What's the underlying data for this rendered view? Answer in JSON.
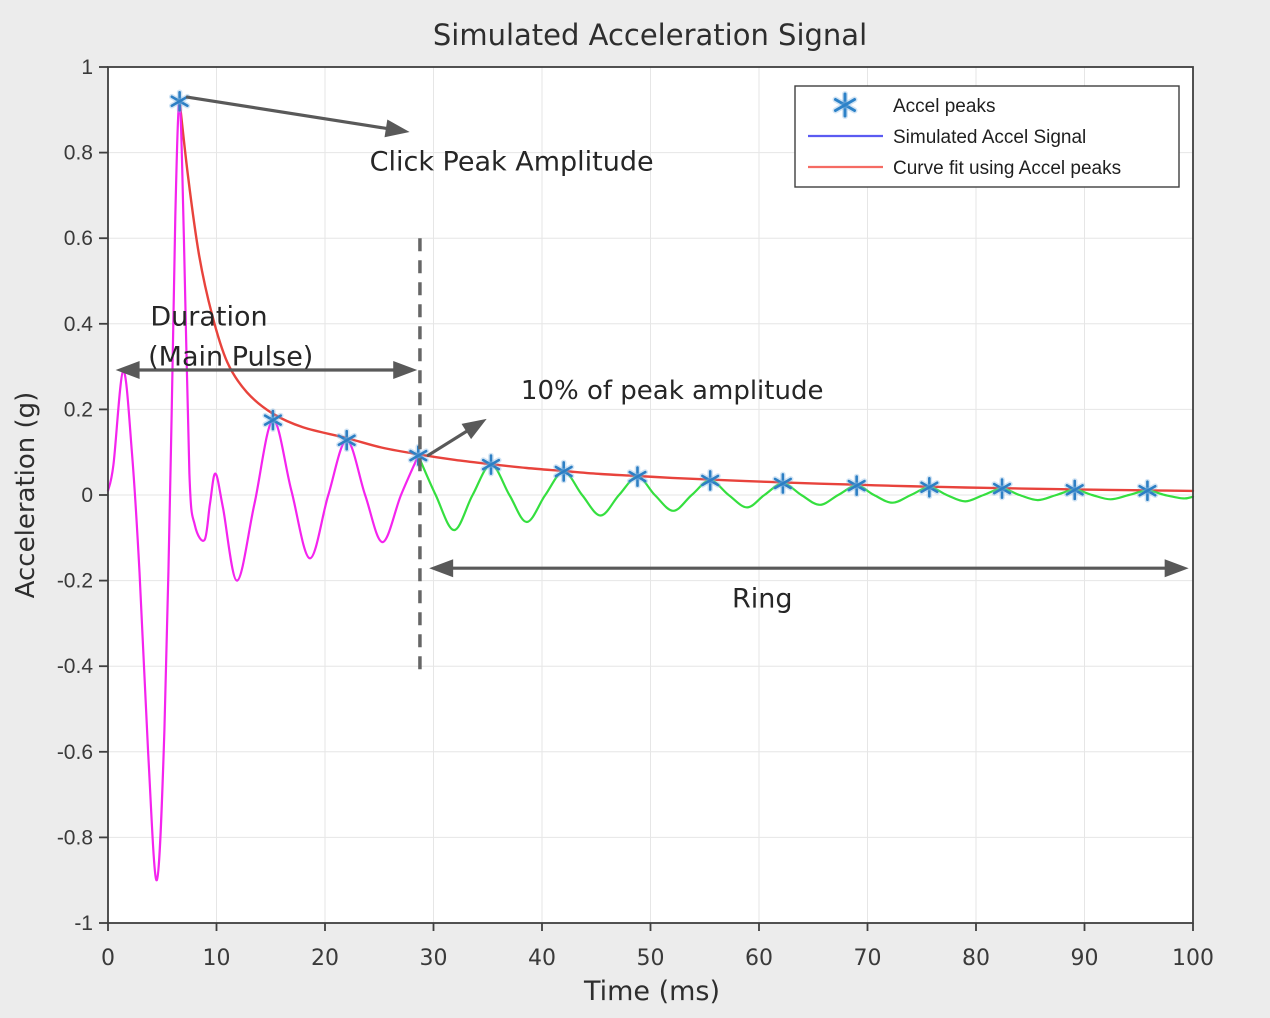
{
  "window": {
    "background": "#ececec",
    "plot_background": "#ffffff"
  },
  "chart_data": {
    "type": "line",
    "title": "Simulated Acceleration Signal",
    "xlabel": "Time (ms)",
    "ylabel": "Acceleration (g)",
    "xlim": [
      0,
      100
    ],
    "ylim": [
      -1,
      1
    ],
    "xticks": [
      0,
      10,
      20,
      30,
      40,
      50,
      60,
      70,
      80,
      90,
      100
    ],
    "yticks": [
      -1,
      -0.8,
      -0.6,
      -0.4,
      -0.2,
      0,
      0.2,
      0.4,
      0.6,
      0.8,
      1
    ],
    "grid": true,
    "grid_color": "#e6e6e6",
    "axis_color": "#3f3f3f",
    "tick_label_color": "#3a3a3a",
    "legend": {
      "position": "top-right",
      "entries": [
        {
          "label": "Accel peaks",
          "swatch": "asterisk-marker",
          "color": "#2d82c8"
        },
        {
          "label": "Simulated Accel Signal",
          "swatch": "line",
          "color": "#5b5bf2"
        },
        {
          "label": "Curve fit using Accel peaks",
          "swatch": "line",
          "color": "#f56b63"
        }
      ]
    },
    "series": [
      {
        "name": "main-pulse-segment",
        "legend_label": "Simulated Accel Signal",
        "color": "#f424ee",
        "points": [
          [
            0,
            0.01
          ],
          [
            0.5,
            0.07
          ],
          [
            1.4,
            0.29
          ],
          [
            2.2,
            0.1
          ],
          [
            2.9,
            -0.18
          ],
          [
            3.7,
            -0.6
          ],
          [
            4.5,
            -0.9
          ],
          [
            5.2,
            -0.55
          ],
          [
            5.8,
            0.1
          ],
          [
            6.2,
            0.65
          ],
          [
            6.6,
            0.92
          ],
          [
            7.0,
            0.6
          ],
          [
            7.5,
            0.05
          ],
          [
            8.0,
            -0.07
          ],
          [
            8.9,
            -0.105
          ],
          [
            9.4,
            -0.02
          ],
          [
            9.9,
            0.05
          ],
          [
            10.6,
            -0.03
          ],
          [
            11.9,
            -0.2
          ],
          [
            13.5,
            -0.02
          ],
          [
            15.2,
            0.175
          ],
          [
            16.9,
            0.01
          ],
          [
            18.6,
            -0.148
          ],
          [
            20.3,
            0
          ],
          [
            22.0,
            0.128
          ],
          [
            23.7,
            0
          ],
          [
            25.3,
            -0.11
          ],
          [
            27.0,
            0
          ],
          [
            28.6,
            0.092
          ]
        ]
      },
      {
        "name": "ring-segment",
        "legend_label": "Simulated Accel Signal",
        "color": "#35df3f",
        "points": [
          [
            28.6,
            0.092
          ],
          [
            30.2,
            0
          ],
          [
            31.9,
            -0.082
          ],
          [
            33.6,
            0
          ],
          [
            35.3,
            0.071
          ],
          [
            37.0,
            0
          ],
          [
            38.6,
            -0.063
          ],
          [
            40.3,
            0
          ],
          [
            42.0,
            0.055
          ],
          [
            43.7,
            0
          ],
          [
            45.4,
            -0.048
          ],
          [
            47.1,
            0
          ],
          [
            48.8,
            0.043
          ],
          [
            50.4,
            0
          ],
          [
            52.1,
            -0.037
          ],
          [
            53.8,
            0
          ],
          [
            55.5,
            0.034
          ],
          [
            57.2,
            0
          ],
          [
            58.9,
            -0.029
          ],
          [
            60.5,
            0
          ],
          [
            62.2,
            0.027
          ],
          [
            63.9,
            0
          ],
          [
            65.6,
            -0.023
          ],
          [
            67.3,
            0
          ],
          [
            69.0,
            0.022
          ],
          [
            70.6,
            0
          ],
          [
            72.3,
            -0.018
          ],
          [
            74.0,
            0
          ],
          [
            75.7,
            0.018
          ],
          [
            77.3,
            0
          ],
          [
            79.0,
            -0.015
          ],
          [
            80.7,
            0
          ],
          [
            82.4,
            0.015
          ],
          [
            84.0,
            0
          ],
          [
            85.7,
            -0.012
          ],
          [
            87.4,
            0
          ],
          [
            89.1,
            0.012
          ],
          [
            90.7,
            0
          ],
          [
            92.4,
            -0.01
          ],
          [
            94.1,
            0
          ],
          [
            95.8,
            0.01
          ],
          [
            97.4,
            0
          ],
          [
            99.1,
            -0.008
          ],
          [
            100,
            -0.004
          ]
        ]
      },
      {
        "name": "curve-fit",
        "legend_label": "Curve fit using Accel peaks",
        "color": "#e8433c",
        "points": [
          [
            6.6,
            0.92
          ],
          [
            7.4,
            0.74
          ],
          [
            8.4,
            0.56
          ],
          [
            9.6,
            0.42
          ],
          [
            11,
            0.31
          ],
          [
            12.8,
            0.24
          ],
          [
            15.2,
            0.19
          ],
          [
            18,
            0.158
          ],
          [
            22,
            0.133
          ],
          [
            25.2,
            0.111
          ],
          [
            28.6,
            0.095
          ],
          [
            32,
            0.082
          ],
          [
            35.3,
            0.072
          ],
          [
            38.6,
            0.063
          ],
          [
            42,
            0.056
          ],
          [
            45.4,
            0.049
          ],
          [
            48.8,
            0.0445
          ],
          [
            52,
            0.04
          ],
          [
            55.5,
            0.036
          ],
          [
            58.8,
            0.0325
          ],
          [
            62.2,
            0.0295
          ],
          [
            65.6,
            0.0265
          ],
          [
            69,
            0.024
          ],
          [
            72.3,
            0.0215
          ],
          [
            75.7,
            0.0195
          ],
          [
            79,
            0.0175
          ],
          [
            82.4,
            0.016
          ],
          [
            85.7,
            0.0145
          ],
          [
            89.1,
            0.013
          ],
          [
            92.4,
            0.0118
          ],
          [
            95.8,
            0.0108
          ],
          [
            100,
            0.0095
          ]
        ]
      },
      {
        "name": "accel-peaks",
        "legend_label": "Accel peaks",
        "marker": "asterisk",
        "color": "#2d7fc4",
        "points": [
          [
            6.6,
            0.92
          ],
          [
            15.2,
            0.175
          ],
          [
            22.0,
            0.128
          ],
          [
            28.6,
            0.092
          ],
          [
            35.3,
            0.071
          ],
          [
            42.0,
            0.055
          ],
          [
            48.8,
            0.043
          ],
          [
            55.5,
            0.034
          ],
          [
            62.2,
            0.027
          ],
          [
            69.0,
            0.022
          ],
          [
            75.7,
            0.018
          ],
          [
            82.4,
            0.015
          ],
          [
            89.1,
            0.012
          ],
          [
            95.8,
            0.01
          ]
        ]
      }
    ],
    "annotations": {
      "color": "#595959",
      "texts": [
        {
          "id": "click-peak-amplitude",
          "text": "Click Peak Amplitude",
          "t": 37.2,
          "g": 0.778,
          "anchor": "middle",
          "size": 27
        },
        {
          "id": "duration-line1",
          "text": "Duration",
          "t": 3.9,
          "g": 0.416,
          "anchor": "start",
          "size": 27
        },
        {
          "id": "duration-line2",
          "text": "(Main Pulse)",
          "t": 3.7,
          "g": 0.322,
          "anchor": "start",
          "size": 27
        },
        {
          "id": "ten-percent-of-peak",
          "text": "10% of peak amplitude",
          "t": 52.0,
          "g": 0.243,
          "anchor": "middle",
          "size": 26
        },
        {
          "id": "ring",
          "text": "Ring",
          "t": 60.3,
          "g": -0.243,
          "anchor": "middle",
          "size": 27
        }
      ],
      "arrows": [
        {
          "id": "click-peak-arrow",
          "t1": 7.2,
          "g1": 0.93,
          "t2": 27.8,
          "g2": 0.848,
          "heads": "end"
        },
        {
          "id": "duration-arrow",
          "t1": 0.7,
          "g1": 0.292,
          "t2": 28.5,
          "g2": 0.292,
          "heads": "both"
        },
        {
          "id": "ten-percent-arrow",
          "t1": 29.4,
          "g1": 0.091,
          "t2": 34.9,
          "g2": 0.178,
          "heads": "end"
        },
        {
          "id": "ring-arrow",
          "t1": 29.6,
          "g1": -0.171,
          "t2": 99.6,
          "g2": -0.171,
          "heads": "both"
        }
      ],
      "dashed_line": {
        "t": 28.75,
        "g1": 0.6,
        "g2": -0.414
      }
    }
  }
}
